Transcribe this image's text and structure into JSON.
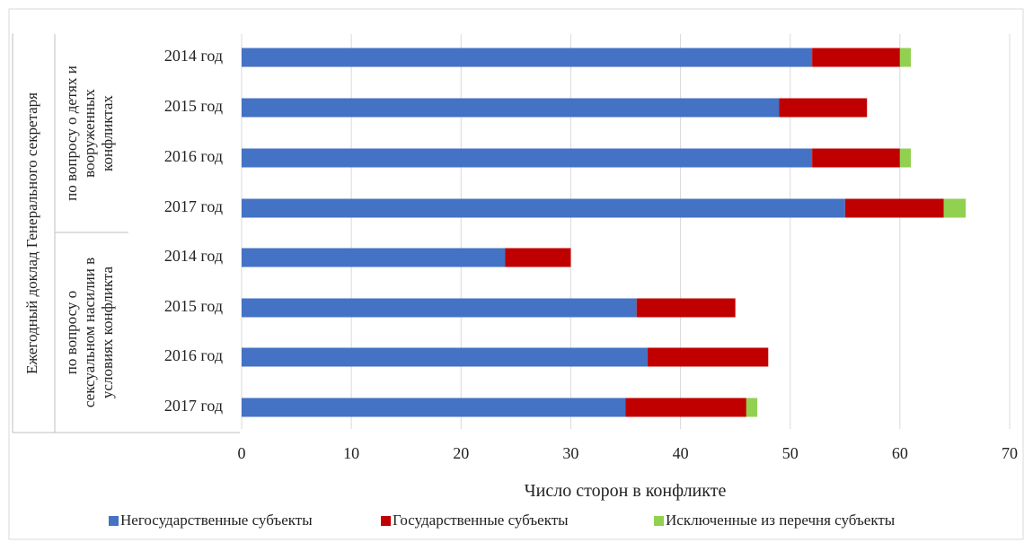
{
  "chart_data": {
    "type": "bar",
    "orientation": "horizontal",
    "stacked": true,
    "xlabel": "Число сторон в конфликте",
    "xlim": [
      0,
      70
    ],
    "x_ticks": [
      0,
      10,
      20,
      30,
      40,
      50,
      60,
      70
    ],
    "grid": true,
    "legend_position": "bottom",
    "outer_group_label": "Ежегодный доклад Генерального секретаря",
    "groups": [
      {
        "label_lines": [
          "по вопросу о детях и",
          "вооруженных",
          "конфликтах"
        ],
        "categories": [
          "2014 год",
          "2015 год",
          "2016 год",
          "2017 год"
        ]
      },
      {
        "label_lines": [
          "по вопросу о",
          "сексуальном насилии в",
          "условиях конфликта"
        ],
        "categories": [
          "2014 год",
          "2015 год",
          "2016 год",
          "2017 год"
        ]
      }
    ],
    "series": [
      {
        "name": "Негосударственные субъекты",
        "color": "#4472C4",
        "values": [
          52,
          49,
          52,
          55,
          24,
          36,
          37,
          35
        ]
      },
      {
        "name": "Государственные субъекты",
        "color": "#C00000",
        "values": [
          8,
          8,
          8,
          9,
          6,
          9,
          11,
          11
        ]
      },
      {
        "name": "Исключенные из перечня субъекты",
        "color": "#92D050",
        "values": [
          1,
          0,
          1,
          2,
          0,
          0,
          0,
          1
        ]
      }
    ]
  }
}
